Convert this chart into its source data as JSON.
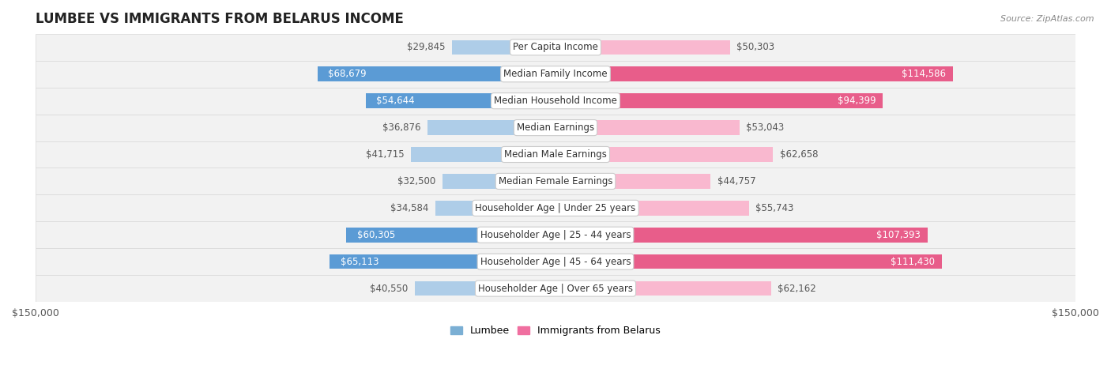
{
  "title": "LUMBEE VS IMMIGRANTS FROM BELARUS INCOME",
  "source": "Source: ZipAtlas.com",
  "categories": [
    "Per Capita Income",
    "Median Family Income",
    "Median Household Income",
    "Median Earnings",
    "Median Male Earnings",
    "Median Female Earnings",
    "Householder Age | Under 25 years",
    "Householder Age | 25 - 44 years",
    "Householder Age | 45 - 64 years",
    "Householder Age | Over 65 years"
  ],
  "lumbee_values": [
    29845,
    68679,
    54644,
    36876,
    41715,
    32500,
    34584,
    60305,
    65113,
    40550
  ],
  "belarus_values": [
    50303,
    114586,
    94399,
    53043,
    62658,
    44757,
    55743,
    107393,
    111430,
    62162
  ],
  "lumbee_color_light": "#aecde8",
  "lumbee_color_dark": "#5b9bd5",
  "belarus_color_light": "#f9b8cf",
  "belarus_color_dark": "#e85d8a",
  "lumbee_legend_color": "#7bafd4",
  "belarus_legend_color": "#f06fa0",
  "lumbee_label": "Lumbee",
  "belarus_label": "Immigrants from Belarus",
  "axis_max": 150000,
  "bar_height": 0.55,
  "background_color": "#ffffff",
  "row_bg": "#f2f2f2",
  "label_fontsize": 8.5,
  "value_fontsize": 8.5,
  "title_fontsize": 12,
  "large_threshold_belarus": 70000,
  "large_threshold_lumbee": 50000
}
